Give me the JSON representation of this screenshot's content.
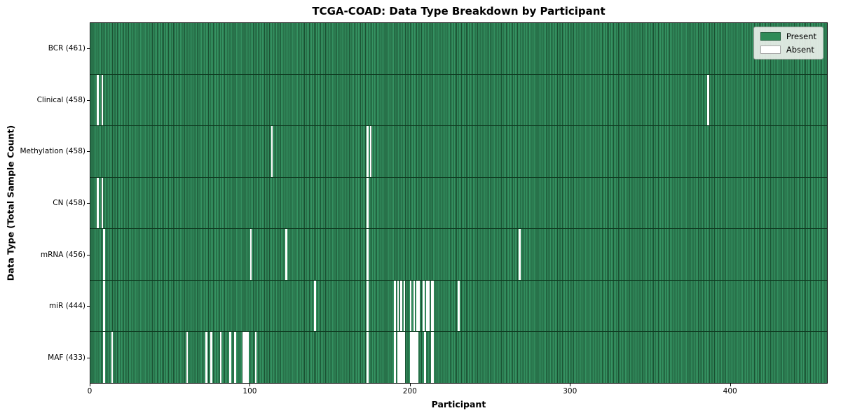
{
  "title": "TCGA-COAD: Data Type Breakdown by Participant",
  "x_axis_label": "Participant",
  "y_axis_label": "Data Type (Total Sample Count)",
  "legend": {
    "present_label": "Present",
    "absent_label": "Absent"
  },
  "colors": {
    "present": "#2e8b57",
    "present_stripe_dark": "#1a5132",
    "absent": "#ffffff",
    "legend_background": "#e9efe9",
    "plot_border": "#000000"
  },
  "chart_data": {
    "type": "heatmap",
    "title": "TCGA-COAD: Data Type Breakdown by Participant",
    "xlabel": "Participant",
    "ylabel": "Data Type (Total Sample Count)",
    "legend_entries": [
      "Present",
      "Absent"
    ],
    "legend_position": "upper right",
    "grid": false,
    "n_participants": 461,
    "xlim": [
      0,
      461
    ],
    "x_ticks": [
      0,
      100,
      200,
      300,
      400
    ],
    "cell_values": "binary presence (1) / absence (0) per participant per data type",
    "rows": [
      {
        "data_type": "BCR",
        "label": "BCR (461)",
        "sample_count": 461,
        "absent_count": 0,
        "absent_participants": []
      },
      {
        "data_type": "Clinical",
        "label": "Clinical (458)",
        "sample_count": 458,
        "absent_count": 3,
        "absent_participants": [
          4,
          7,
          386
        ]
      },
      {
        "data_type": "Methylation",
        "label": "Methylation (458)",
        "sample_count": 458,
        "absent_count": 3,
        "absent_participants": [
          113,
          173,
          175
        ]
      },
      {
        "data_type": "CN",
        "label": "CN (458)",
        "sample_count": 458,
        "absent_count": 3,
        "absent_participants": [
          4,
          7,
          173
        ]
      },
      {
        "data_type": "mRNA",
        "label": "mRNA (456)",
        "sample_count": 456,
        "absent_count": 5,
        "absent_participants": [
          8,
          100,
          122,
          173,
          268
        ]
      },
      {
        "data_type": "miR",
        "label": "miR (444)",
        "sample_count": 444,
        "absent_count": 17,
        "absent_participants": [
          8,
          140,
          173,
          190,
          192,
          194,
          196,
          200,
          202,
          204,
          205,
          208,
          210,
          211,
          213,
          214,
          230
        ]
      },
      {
        "data_type": "MAF",
        "label": "MAF (433)",
        "sample_count": 433,
        "absent_count": 28,
        "absent_participants": [
          8,
          13,
          60,
          72,
          75,
          81,
          87,
          90,
          95,
          96,
          97,
          98,
          103,
          173,
          190,
          192,
          193,
          194,
          195,
          196,
          200,
          201,
          202,
          203,
          204,
          209,
          213,
          214
        ]
      }
    ]
  }
}
